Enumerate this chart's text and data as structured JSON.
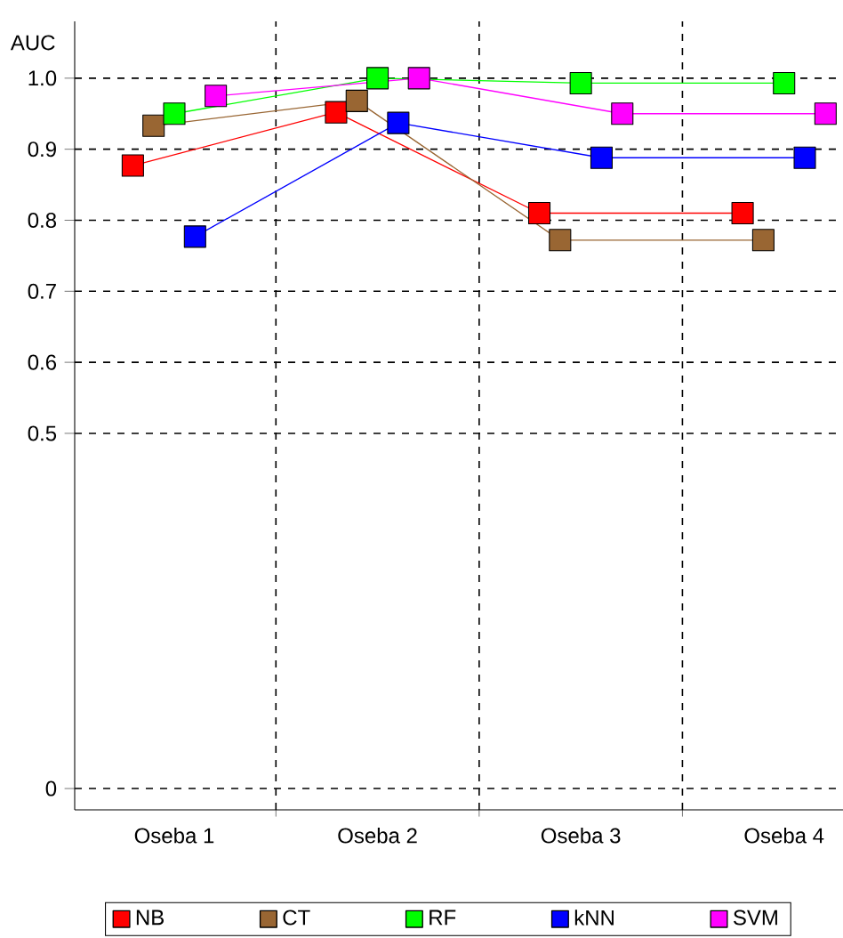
{
  "chart_data": {
    "type": "line",
    "ylabel": "AUC",
    "categories": [
      "Oseba 1",
      "Oseba 2",
      "Oseba 3",
      "Oseba 4"
    ],
    "series": [
      {
        "name": "NB",
        "color": "#ff0000",
        "values": [
          0.877,
          0.952,
          0.81,
          0.81
        ]
      },
      {
        "name": "CT",
        "color": "#996633",
        "values": [
          0.933,
          0.968,
          0.772,
          0.772
        ]
      },
      {
        "name": "RF",
        "color": "#00ff00",
        "values": [
          0.95,
          1.0,
          0.993,
          0.993
        ]
      },
      {
        "name": "kNN",
        "color": "#0000ff",
        "values": [
          0.777,
          0.937,
          0.888,
          0.888
        ]
      },
      {
        "name": "SVM",
        "color": "#ff00ff",
        "values": [
          0.975,
          1.0,
          0.95,
          0.95
        ]
      }
    ],
    "ylim": [
      -0.03,
      1.08
    ],
    "yticks": [
      0,
      0.5,
      0.6,
      0.7,
      0.8,
      0.9,
      {
        "value": 1.0,
        "label": "1.0"
      }
    ],
    "grid": true,
    "legend": "bottom",
    "marker": "square"
  }
}
